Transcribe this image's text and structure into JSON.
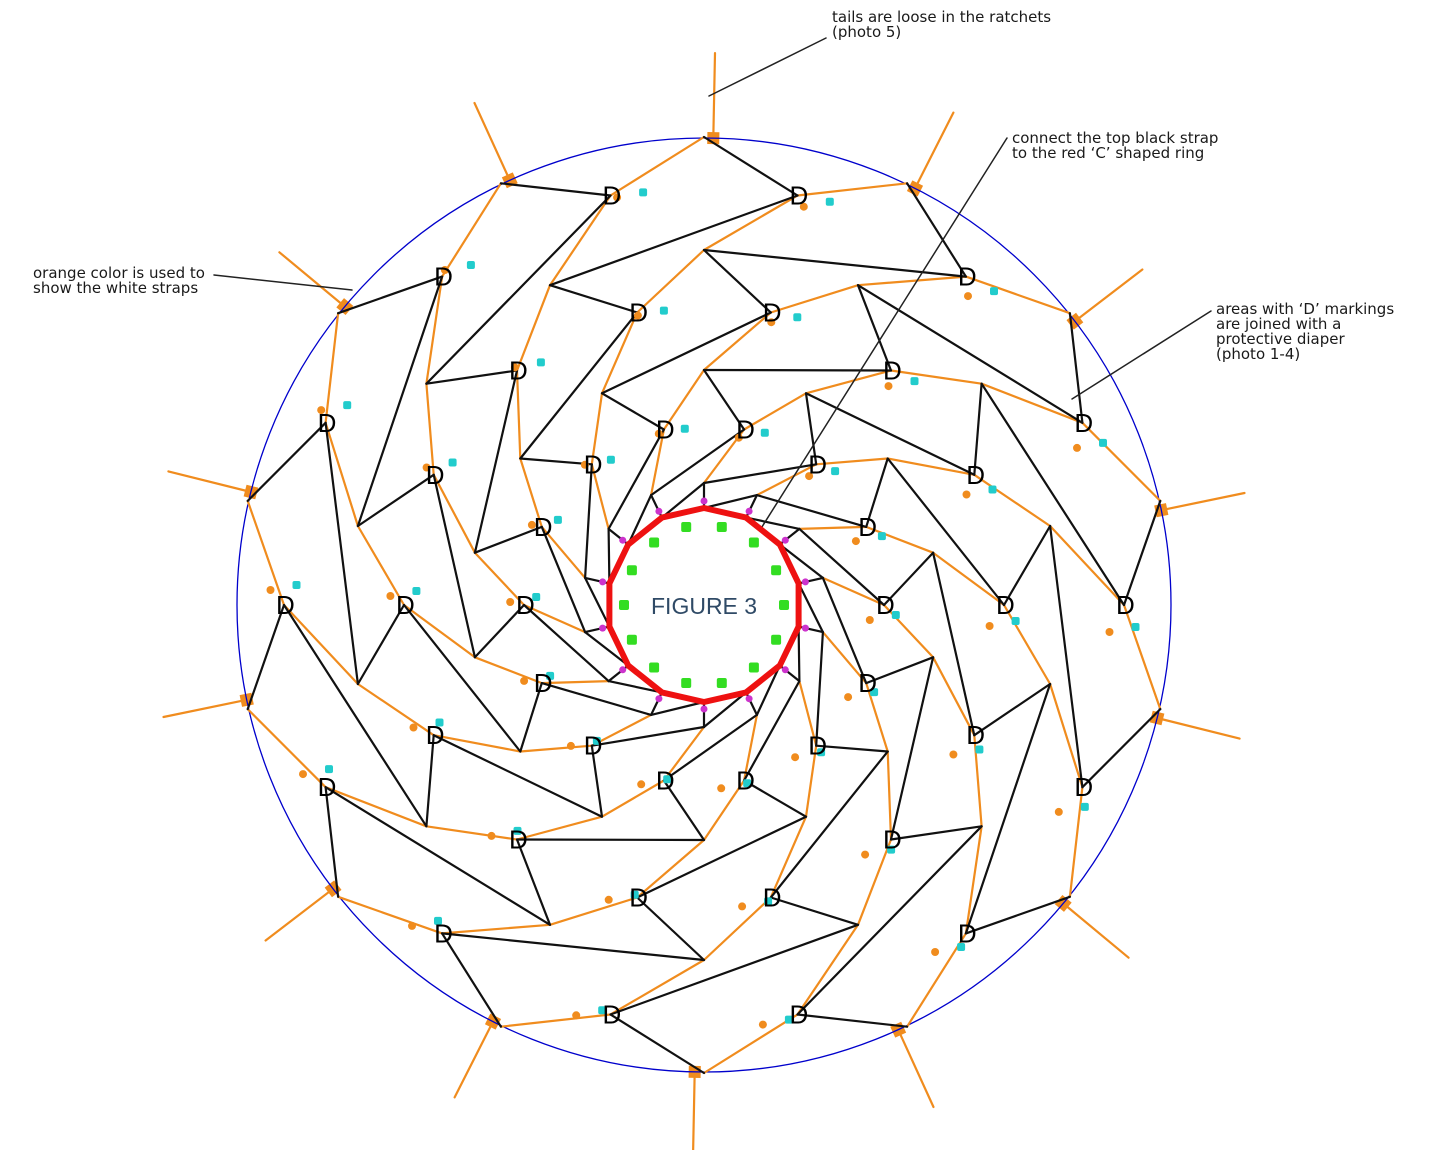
{
  "figure": {
    "title": "FIGURE 3",
    "marker_letter": "D",
    "colors": {
      "outer_circle": "#0000cc",
      "white_straps": "#f08c1e",
      "black_straps": "#111111",
      "c_ring": "#ee1111",
      "ring_clips": "#33dd22",
      "ring_links": "#cc33cc",
      "diaper_tags": "#22cccc",
      "strap_tags": "#f08c1e"
    },
    "icons": [
      "ratchet-icon",
      "diaper-tag-icon",
      "ring-clip-icon",
      "strap-tag-icon"
    ]
  },
  "annotations": {
    "ratchets": "tails are loose in the ratchets\n(photo 5)",
    "connect": "connect the top black strap\nto the red ‘C’ shaped ring",
    "orange": "orange color is used to\nshow the white straps",
    "diaper": "areas with ‘D’ markings\nare joined with a\nprotective diaper\n(photo 1-4)"
  }
}
